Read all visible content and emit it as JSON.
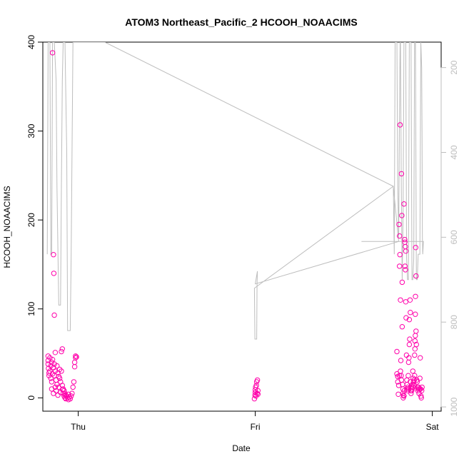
{
  "chart_data": {
    "type": "scatter",
    "title": "ATOM3 Northeast_Pacific_2 HCOOH_NOAACIMS",
    "xlabel": "Date",
    "ylabel": "HCOOH_NOAACIMS",
    "x_ticks": [
      "Thu",
      "Fri",
      "Sat"
    ],
    "y_ticks": [
      0,
      100,
      200,
      300,
      400
    ],
    "ylim": [
      -15,
      400
    ],
    "right_axis": {
      "label": "",
      "ticks": [
        200,
        400,
        600,
        800,
        1000
      ],
      "range": [
        1010,
        140
      ],
      "color": "#bdbdbd",
      "reversed": true
    },
    "x_unit": "days",
    "xlim": [
      -0.2,
      2.05
    ],
    "grid": false,
    "series": [
      {
        "kind": "points",
        "color": "#ff00aa",
        "marker": "open-circle",
        "points": [
          [
            -0.17,
            47
          ],
          [
            -0.17,
            42
          ],
          [
            -0.17,
            38
          ],
          [
            -0.168,
            33
          ],
          [
            -0.165,
            28
          ],
          [
            -0.165,
            25
          ],
          [
            -0.16,
            45
          ],
          [
            -0.16,
            30
          ],
          [
            -0.155,
            36
          ],
          [
            -0.155,
            22
          ],
          [
            -0.15,
            40
          ],
          [
            -0.15,
            18
          ],
          [
            -0.15,
            10
          ],
          [
            -0.145,
            43
          ],
          [
            -0.145,
            27
          ],
          [
            -0.145,
            388
          ],
          [
            -0.14,
            161
          ],
          [
            -0.14,
            34
          ],
          [
            -0.14,
            5
          ],
          [
            -0.138,
            140
          ],
          [
            -0.135,
            93
          ],
          [
            -0.135,
            38
          ],
          [
            -0.135,
            25
          ],
          [
            -0.13,
            51
          ],
          [
            -0.13,
            30
          ],
          [
            -0.13,
            12
          ],
          [
            -0.125,
            20
          ],
          [
            -0.125,
            8
          ],
          [
            -0.12,
            36
          ],
          [
            -0.12,
            15
          ],
          [
            -0.115,
            28
          ],
          [
            -0.115,
            3
          ],
          [
            -0.11,
            24
          ],
          [
            -0.11,
            12
          ],
          [
            -0.105,
            32
          ],
          [
            -0.105,
            22
          ],
          [
            -0.1,
            18
          ],
          [
            -0.1,
            6
          ],
          [
            -0.095,
            52
          ],
          [
            -0.095,
            30
          ],
          [
            -0.09,
            55
          ],
          [
            -0.09,
            14
          ],
          [
            -0.088,
            9
          ],
          [
            -0.085,
            10
          ],
          [
            -0.085,
            5
          ],
          [
            -0.08,
            8
          ],
          [
            -0.08,
            2
          ],
          [
            -0.075,
            5
          ],
          [
            -0.075,
            0
          ],
          [
            -0.07,
            3
          ],
          [
            -0.07,
            -1
          ],
          [
            -0.065,
            2
          ],
          [
            -0.06,
            0
          ],
          [
            -0.055,
            -2
          ],
          [
            -0.055,
            4
          ],
          [
            -0.05,
            1
          ],
          [
            -0.045,
            -1
          ],
          [
            -0.04,
            2
          ],
          [
            -0.035,
            5
          ],
          [
            -0.03,
            12
          ],
          [
            -0.025,
            18
          ],
          [
            -0.02,
            35
          ],
          [
            -0.02,
            40
          ],
          [
            -0.015,
            45
          ],
          [
            -0.015,
            47
          ],
          [
            -0.01,
            46
          ],
          [
            0.995,
            -1
          ],
          [
            0.998,
            3
          ],
          [
            1.0,
            6
          ],
          [
            1.0,
            9
          ],
          [
            1.002,
            12
          ],
          [
            1.004,
            2
          ],
          [
            1.006,
            14
          ],
          [
            1.008,
            18
          ],
          [
            1.01,
            5
          ],
          [
            1.012,
            20
          ],
          [
            1.015,
            4
          ],
          [
            1.015,
            8
          ],
          [
            1.8,
            52
          ],
          [
            1.8,
            27
          ],
          [
            1.805,
            24
          ],
          [
            1.805,
            18
          ],
          [
            1.808,
            4
          ],
          [
            1.81,
            14
          ],
          [
            1.812,
            195
          ],
          [
            1.814,
            25
          ],
          [
            1.815,
            182
          ],
          [
            1.815,
            148
          ],
          [
            1.817,
            161
          ],
          [
            1.818,
            307
          ],
          [
            1.82,
            110
          ],
          [
            1.82,
            30
          ],
          [
            1.822,
            42
          ],
          [
            1.824,
            25
          ],
          [
            1.826,
            252
          ],
          [
            1.826,
            20
          ],
          [
            1.828,
            205
          ],
          [
            1.83,
            130
          ],
          [
            1.83,
            80
          ],
          [
            1.832,
            15
          ],
          [
            1.834,
            10
          ],
          [
            1.834,
            5
          ],
          [
            1.836,
            0
          ],
          [
            1.838,
            3
          ],
          [
            1.84,
            2
          ],
          [
            1.84,
            218
          ],
          [
            1.842,
            8
          ],
          [
            1.844,
            178
          ],
          [
            1.845,
            175
          ],
          [
            1.846,
            148
          ],
          [
            1.848,
            144
          ],
          [
            1.848,
            170
          ],
          [
            1.85,
            165
          ],
          [
            1.85,
            108
          ],
          [
            1.852,
            90
          ],
          [
            1.854,
            48
          ],
          [
            1.856,
            20
          ],
          [
            1.856,
            10
          ],
          [
            1.858,
            15
          ],
          [
            1.86,
            8
          ],
          [
            1.862,
            12
          ],
          [
            1.864,
            25
          ],
          [
            1.866,
            10
          ],
          [
            1.866,
            40
          ],
          [
            1.868,
            45
          ],
          [
            1.87,
            60
          ],
          [
            1.87,
            88
          ],
          [
            1.872,
            66
          ],
          [
            1.874,
            110
          ],
          [
            1.876,
            96
          ],
          [
            1.876,
            18
          ],
          [
            1.878,
            8
          ],
          [
            1.88,
            5
          ],
          [
            1.882,
            12
          ],
          [
            1.884,
            8
          ],
          [
            1.886,
            10
          ],
          [
            1.888,
            15
          ],
          [
            1.89,
            12
          ],
          [
            1.89,
            30
          ],
          [
            1.892,
            22
          ],
          [
            1.894,
            18
          ],
          [
            1.896,
            14
          ],
          [
            1.898,
            20
          ],
          [
            1.9,
            25
          ],
          [
            1.9,
            48
          ],
          [
            1.902,
            55
          ],
          [
            1.902,
            64
          ],
          [
            1.904,
            70
          ],
          [
            1.904,
            94
          ],
          [
            1.905,
            114
          ],
          [
            1.906,
            169
          ],
          [
            1.908,
            137
          ],
          [
            1.908,
            75
          ],
          [
            1.91,
            60
          ],
          [
            1.912,
            20
          ],
          [
            1.914,
            18
          ],
          [
            1.916,
            12
          ],
          [
            1.918,
            8
          ],
          [
            1.92,
            10
          ],
          [
            1.922,
            12
          ],
          [
            1.925,
            5
          ],
          [
            1.928,
            10
          ],
          [
            1.93,
            22
          ],
          [
            1.932,
            45
          ],
          [
            1.934,
            10
          ],
          [
            1.936,
            2
          ],
          [
            1.938,
            0
          ],
          [
            1.94,
            8
          ],
          [
            1.942,
            12
          ]
        ]
      },
      {
        "kind": "line",
        "name": "",
        "color": "#bdbdbd",
        "axis": "right",
        "points": [
          [
            -0.175,
            640
          ],
          [
            -0.17,
            140
          ],
          [
            -0.16,
            140
          ],
          [
            -0.155,
            640
          ],
          [
            -0.15,
            640
          ],
          [
            -0.145,
            140
          ],
          [
            -0.14,
            140
          ],
          [
            -0.135,
            140
          ],
          [
            -0.125,
            230
          ],
          [
            -0.12,
            480
          ],
          [
            -0.11,
            760
          ],
          [
            -0.1,
            760
          ],
          [
            -0.095,
            480
          ],
          [
            -0.09,
            230
          ],
          [
            -0.085,
            140
          ],
          [
            -0.08,
            140
          ],
          [
            -0.075,
            140
          ],
          [
            -0.065,
            400
          ],
          [
            -0.06,
            820
          ],
          [
            -0.045,
            820
          ],
          [
            -0.04,
            640
          ],
          [
            -0.035,
            400
          ],
          [
            -0.03,
            140
          ],
          [
            -0.02,
            140
          ],
          [
            0.15,
            140
          ],
          [
            1.78,
            480
          ],
          [
            0.995,
            720
          ],
          [
            0.998,
            840
          ],
          [
            1.008,
            840
          ],
          [
            1.01,
            710
          ],
          [
            1.012,
            680
          ],
          [
            1.0,
            710
          ],
          [
            1.81,
            610
          ],
          [
            1.78,
            480
          ],
          [
            1.785,
            640
          ],
          [
            1.79,
            140
          ],
          [
            1.8,
            140
          ],
          [
            1.805,
            480
          ],
          [
            1.81,
            600
          ],
          [
            1.815,
            300
          ],
          [
            1.818,
            140
          ],
          [
            1.82,
            140
          ],
          [
            1.825,
            480
          ],
          [
            1.83,
            700
          ],
          [
            1.835,
            540
          ],
          [
            1.84,
            140
          ],
          [
            1.85,
            140
          ],
          [
            1.855,
            650
          ],
          [
            1.86,
            700
          ],
          [
            1.865,
            700
          ],
          [
            1.87,
            140
          ],
          [
            1.88,
            140
          ],
          [
            1.885,
            700
          ],
          [
            1.89,
            700
          ],
          [
            1.895,
            650
          ],
          [
            1.9,
            140
          ],
          [
            1.905,
            140
          ],
          [
            1.91,
            700
          ],
          [
            1.915,
            700
          ],
          [
            1.92,
            640
          ],
          [
            1.93,
            640
          ],
          [
            1.935,
            140
          ],
          [
            1.94,
            200
          ],
          [
            1.942,
            350
          ],
          [
            1.944,
            600
          ],
          [
            1.946,
            640
          ],
          [
            1.95,
            610
          ],
          [
            1.6,
            610
          ]
        ]
      }
    ]
  }
}
